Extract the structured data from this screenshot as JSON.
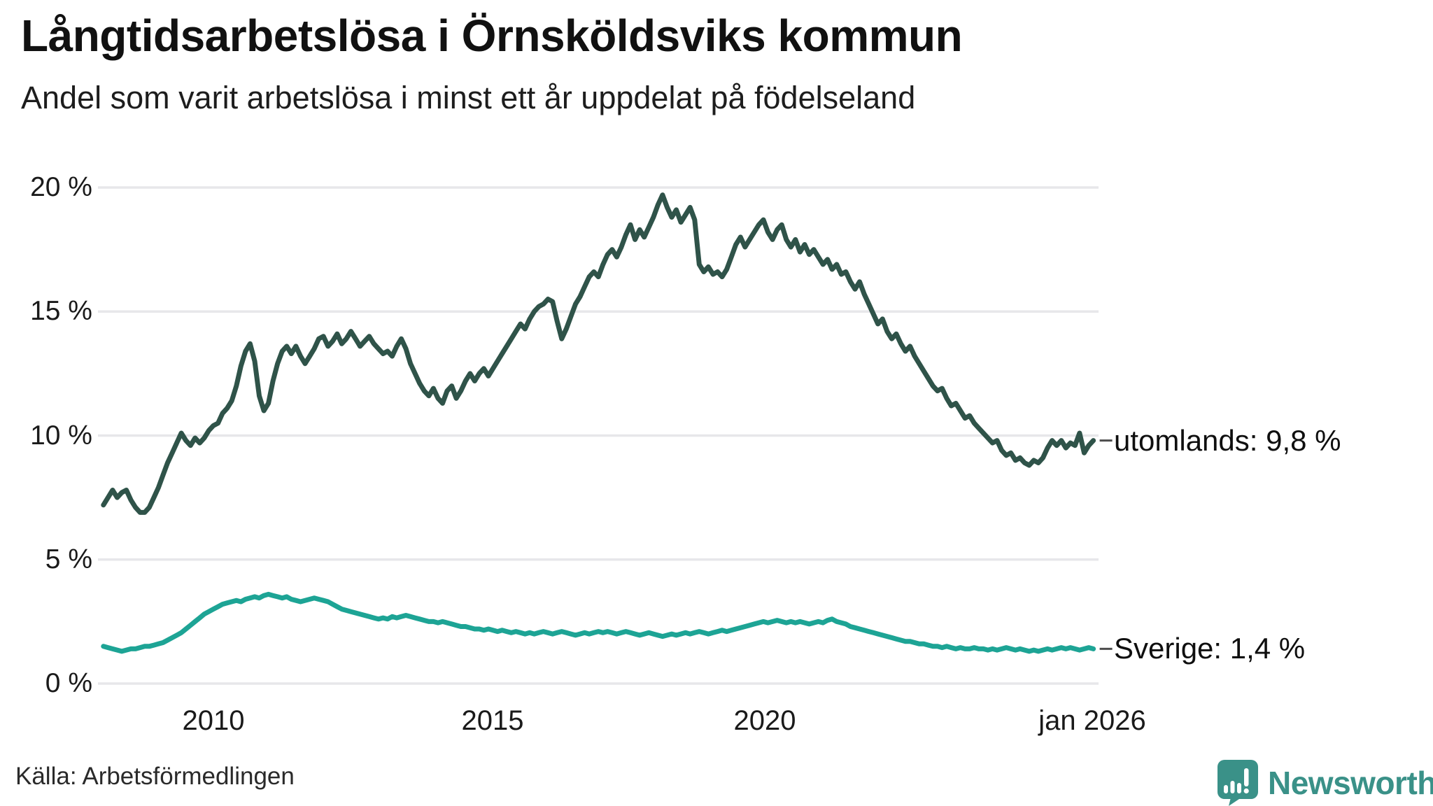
{
  "title": "Långtidsarbetslösa i Örnsköldsviks kommun",
  "subtitle": "Andel som varit arbetslösa i minst ett år uppdelat på födelseland",
  "source": "Källa: Arbetsförmedlingen",
  "branding": {
    "name": "Newsworthy",
    "color": "#3a9188",
    "icon": "bar-chart-speech-bubble"
  },
  "chart_data": {
    "type": "line",
    "title": "Långtidsarbetslösa i Örnsköldsviks kommun",
    "subtitle": "Andel som varit arbetslösa i minst ett år uppdelat på födelseland",
    "unit": "%",
    "x_start": "jan 2008",
    "x_end": "jan 2026",
    "interval": "monthly",
    "ylim": [
      0,
      20
    ],
    "grid": true,
    "grid_color": "#e7e7ea",
    "y_ticks": [
      {
        "label": "20 %",
        "value": 20
      },
      {
        "label": "15 %",
        "value": 15
      },
      {
        "label": "10 %",
        "value": 10
      },
      {
        "label": "5 %",
        "value": 5
      },
      {
        "label": "0 %",
        "value": 0
      }
    ],
    "x_ticks": [
      {
        "label": "2010"
      },
      {
        "label": "2015"
      },
      {
        "label": "2020"
      },
      {
        "label": "jan 2026"
      }
    ],
    "series": [
      {
        "name": "utomlands",
        "label": "utomlands: 9,8 %",
        "last_value": "9,8 %",
        "color": "#2f5349",
        "values": [
          7.2,
          7.5,
          7.8,
          7.5,
          7.7,
          7.8,
          7.4,
          7.1,
          6.9,
          6.9,
          7.1,
          7.5,
          7.9,
          8.4,
          8.9,
          9.3,
          9.7,
          10.1,
          9.8,
          9.6,
          9.9,
          9.7,
          9.9,
          10.2,
          10.4,
          10.5,
          10.9,
          11.1,
          11.4,
          12.0,
          12.8,
          13.4,
          13.7,
          13.0,
          11.6,
          11.0,
          11.3,
          12.2,
          12.9,
          13.4,
          13.6,
          13.3,
          13.6,
          13.2,
          12.9,
          13.2,
          13.5,
          13.9,
          14.0,
          13.6,
          13.8,
          14.1,
          13.7,
          13.9,
          14.2,
          13.9,
          13.6,
          13.8,
          14.0,
          13.7,
          13.5,
          13.3,
          13.4,
          13.2,
          13.6,
          13.9,
          13.5,
          12.9,
          12.5,
          12.1,
          11.8,
          11.6,
          11.9,
          11.5,
          11.3,
          11.8,
          12.0,
          11.5,
          11.8,
          12.2,
          12.5,
          12.2,
          12.5,
          12.7,
          12.4,
          12.7,
          13.0,
          13.3,
          13.6,
          13.9,
          14.2,
          14.5,
          14.3,
          14.7,
          15.0,
          15.2,
          15.3,
          15.5,
          15.4,
          14.6,
          13.9,
          14.3,
          14.8,
          15.3,
          15.6,
          16.0,
          16.4,
          16.6,
          16.4,
          16.9,
          17.3,
          17.5,
          17.2,
          17.6,
          18.1,
          18.5,
          17.9,
          18.3,
          18.0,
          18.4,
          18.8,
          19.3,
          19.7,
          19.2,
          18.8,
          19.1,
          18.6,
          18.9,
          19.2,
          18.7,
          16.9,
          16.6,
          16.8,
          16.5,
          16.6,
          16.4,
          16.7,
          17.2,
          17.7,
          18.0,
          17.6,
          17.9,
          18.2,
          18.5,
          18.7,
          18.2,
          17.9,
          18.3,
          18.5,
          17.9,
          17.6,
          17.9,
          17.4,
          17.7,
          17.3,
          17.5,
          17.2,
          16.9,
          17.1,
          16.7,
          16.9,
          16.5,
          16.6,
          16.2,
          15.9,
          16.2,
          15.7,
          15.3,
          14.9,
          14.5,
          14.7,
          14.2,
          13.9,
          14.1,
          13.7,
          13.4,
          13.6,
          13.2,
          12.9,
          12.6,
          12.3,
          12.0,
          11.8,
          11.9,
          11.5,
          11.2,
          11.3,
          11.0,
          10.7,
          10.8,
          10.5,
          10.3,
          10.1,
          9.9,
          9.7,
          9.8,
          9.4,
          9.2,
          9.3,
          9.0,
          9.1,
          8.9,
          8.8,
          9.0,
          8.9,
          9.1,
          9.5,
          9.8,
          9.6,
          9.8,
          9.5,
          9.7,
          9.6,
          10.1,
          9.3,
          9.6,
          9.8
        ]
      },
      {
        "name": "Sverige",
        "label": "Sverige: 1,4 %",
        "last_value": "1,4 %",
        "color": "#1da495",
        "values": [
          1.5,
          1.45,
          1.4,
          1.35,
          1.3,
          1.35,
          1.4,
          1.4,
          1.45,
          1.5,
          1.5,
          1.55,
          1.6,
          1.65,
          1.75,
          1.85,
          1.95,
          2.05,
          2.2,
          2.35,
          2.5,
          2.65,
          2.8,
          2.9,
          3.0,
          3.1,
          3.2,
          3.25,
          3.3,
          3.35,
          3.3,
          3.4,
          3.45,
          3.5,
          3.45,
          3.55,
          3.6,
          3.55,
          3.5,
          3.45,
          3.5,
          3.4,
          3.35,
          3.3,
          3.35,
          3.4,
          3.45,
          3.4,
          3.35,
          3.3,
          3.2,
          3.1,
          3.0,
          2.95,
          2.9,
          2.85,
          2.8,
          2.75,
          2.7,
          2.65,
          2.6,
          2.65,
          2.6,
          2.7,
          2.65,
          2.7,
          2.75,
          2.7,
          2.65,
          2.6,
          2.55,
          2.5,
          2.5,
          2.45,
          2.5,
          2.45,
          2.4,
          2.35,
          2.3,
          2.3,
          2.25,
          2.2,
          2.2,
          2.15,
          2.2,
          2.15,
          2.1,
          2.15,
          2.1,
          2.05,
          2.1,
          2.05,
          2.0,
          2.05,
          2.0,
          2.05,
          2.1,
          2.05,
          2.0,
          2.05,
          2.1,
          2.05,
          2.0,
          1.95,
          2.0,
          2.05,
          2.0,
          2.05,
          2.1,
          2.05,
          2.1,
          2.05,
          2.0,
          2.05,
          2.1,
          2.05,
          2.0,
          1.95,
          2.0,
          2.05,
          2.0,
          1.95,
          1.9,
          1.95,
          2.0,
          1.95,
          2.0,
          2.05,
          2.0,
          2.05,
          2.1,
          2.05,
          2.0,
          2.05,
          2.1,
          2.15,
          2.1,
          2.15,
          2.2,
          2.25,
          2.3,
          2.35,
          2.4,
          2.45,
          2.5,
          2.45,
          2.5,
          2.55,
          2.5,
          2.45,
          2.5,
          2.45,
          2.5,
          2.45,
          2.4,
          2.45,
          2.5,
          2.45,
          2.55,
          2.6,
          2.5,
          2.45,
          2.4,
          2.3,
          2.25,
          2.2,
          2.15,
          2.1,
          2.05,
          2.0,
          1.95,
          1.9,
          1.85,
          1.8,
          1.75,
          1.7,
          1.7,
          1.65,
          1.6,
          1.6,
          1.55,
          1.5,
          1.5,
          1.45,
          1.5,
          1.45,
          1.4,
          1.45,
          1.4,
          1.4,
          1.45,
          1.4,
          1.4,
          1.35,
          1.4,
          1.35,
          1.4,
          1.45,
          1.4,
          1.35,
          1.4,
          1.35,
          1.3,
          1.35,
          1.3,
          1.35,
          1.4,
          1.35,
          1.4,
          1.45,
          1.4,
          1.45,
          1.4,
          1.35,
          1.4,
          1.45,
          1.4
        ]
      }
    ],
    "legend_position": "right-inline-labels"
  }
}
